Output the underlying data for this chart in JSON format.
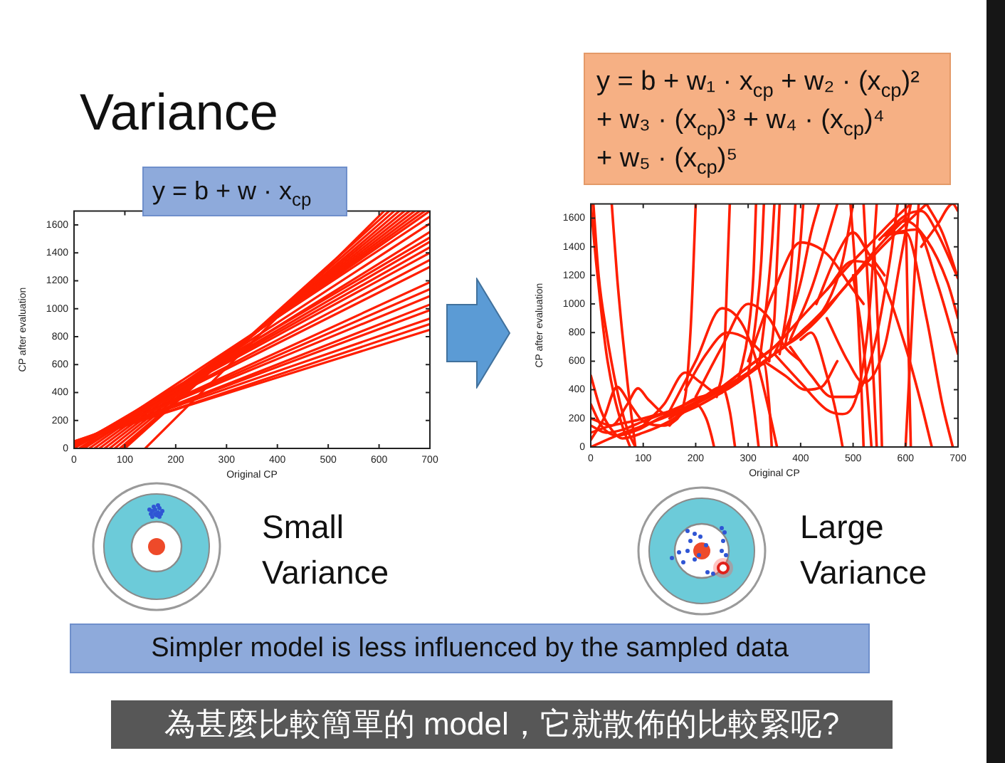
{
  "chart_data": [
    {
      "type": "line",
      "title": "y = b + w · x$_{cp}$",
      "xlabel": "Original CP",
      "ylabel": "CP after evaluation",
      "annotations": [
        "Variance",
        "Small Variance",
        "Simpler model is less influenced by the sampled data",
        "為甚麼比較簡單的 model，它就散佈的比較緊呢?"
      ],
      "xlim": [
        0,
        700
      ],
      "ylim": [
        0,
        1700
      ],
      "xticks": [
        0,
        100,
        200,
        300,
        400,
        500,
        600,
        700
      ],
      "yticks": [
        0,
        200,
        400,
        600,
        800,
        1000,
        1200,
        1400,
        1600
      ],
      "series": [
        {
          "color": "#ff1e00",
          "x": [
            0,
            700
          ],
          "values": [
            50,
            850
          ]
        },
        {
          "color": "#ff1e00",
          "x": [
            0,
            700
          ],
          "values": [
            40,
            890
          ]
        },
        {
          "color": "#ff1e00",
          "x": [
            0,
            700
          ],
          "values": [
            50,
            930
          ]
        },
        {
          "color": "#ff1e00",
          "x": [
            0,
            700
          ],
          "values": [
            40,
            990
          ]
        },
        {
          "color": "#ff1e00",
          "x": [
            0,
            700
          ],
          "values": [
            30,
            1030
          ]
        },
        {
          "color": "#ff1e00",
          "x": [
            0,
            700
          ],
          "values": [
            40,
            1090
          ]
        },
        {
          "color": "#ff1e00",
          "x": [
            0,
            700
          ],
          "values": [
            30,
            1140
          ]
        },
        {
          "color": "#ff1e00",
          "x": [
            0,
            700
          ],
          "values": [
            20,
            1190
          ]
        },
        {
          "color": "#ff1e00",
          "x": [
            0,
            700
          ],
          "values": [
            20,
            1300
          ]
        },
        {
          "color": "#ff1e00",
          "x": [
            0,
            700
          ],
          "values": [
            10,
            1350
          ]
        },
        {
          "color": "#ff1e00",
          "x": [
            0,
            700
          ],
          "values": [
            20,
            1400
          ]
        },
        {
          "color": "#ff1e00",
          "x": [
            0,
            700
          ],
          "values": [
            10,
            1440
          ]
        },
        {
          "color": "#ff1e00",
          "x": [
            0,
            700
          ],
          "values": [
            0,
            1480
          ]
        },
        {
          "color": "#ff1e00",
          "x": [
            0,
            700
          ],
          "values": [
            10,
            1510
          ]
        },
        {
          "color": "#ff1e00",
          "x": [
            30,
            700
          ],
          "values": [
            0,
            1700
          ]
        },
        {
          "color": "#ff1e00",
          "x": [
            40,
            690
          ],
          "values": [
            0,
            1700
          ]
        },
        {
          "color": "#ff1e00",
          "x": [
            50,
            680
          ],
          "values": [
            0,
            1700
          ]
        },
        {
          "color": "#ff1e00",
          "x": [
            60,
            670
          ],
          "values": [
            0,
            1700
          ]
        },
        {
          "color": "#ff1e00",
          "x": [
            70,
            660
          ],
          "values": [
            0,
            1700
          ]
        },
        {
          "color": "#ff1e00",
          "x": [
            80,
            650
          ],
          "values": [
            0,
            1700
          ]
        },
        {
          "color": "#ff1e00",
          "x": [
            90,
            640
          ],
          "values": [
            0,
            1700
          ]
        },
        {
          "color": "#ff1e00",
          "x": [
            95,
            630
          ],
          "values": [
            0,
            1700
          ]
        },
        {
          "color": "#ff1e00",
          "x": [
            100,
            620
          ],
          "values": [
            0,
            1700
          ]
        },
        {
          "color": "#ff1e00",
          "x": [
            140,
            610
          ],
          "values": [
            0,
            1700
          ]
        },
        {
          "color": "#ff1e00",
          "x": [
            15,
            700
          ],
          "values": [
            0,
            1550
          ]
        },
        {
          "color": "#ff1e00",
          "x": [
            20,
            700
          ],
          "values": [
            0,
            1610
          ]
        },
        {
          "color": "#ff1e00",
          "x": [
            10,
            700
          ],
          "values": [
            0,
            1660
          ]
        }
      ]
    },
    {
      "type": "line",
      "title": "y = b + w₁ · x$_{cp}$ + w₂ · (x$_{cp}$)²\n+ w₃ · (x$_{cp}$)³ + w₄ · (x$_{cp}$)⁴\n+ w₅ · (x$_{cp}$)⁵",
      "xlabel": "Original CP",
      "ylabel": "CP after evaluation",
      "annotations": [
        "Large Variance"
      ],
      "xlim": [
        0,
        700
      ],
      "ylim": [
        0,
        1700
      ],
      "xticks": [
        0,
        100,
        200,
        300,
        400,
        500,
        600,
        700
      ],
      "yticks": [
        0,
        200,
        400,
        600,
        800,
        1000,
        1200,
        1400,
        1600
      ],
      "series": [
        {
          "color": "#ff1e00",
          "x": [
            0,
            10,
            20,
            30,
            45,
            60,
            75
          ],
          "values": [
            1700,
            1300,
            950,
            650,
            350,
            150,
            0
          ]
        },
        {
          "color": "#ff1e00",
          "x": [
            5,
            15,
            30,
            50,
            70,
            85
          ],
          "values": [
            1700,
            1200,
            800,
            400,
            120,
            0
          ]
        },
        {
          "color": "#ff1e00",
          "x": [
            40,
            50,
            60,
            70,
            85
          ],
          "values": [
            1700,
            1200,
            800,
            450,
            0
          ]
        },
        {
          "color": "#ff1e00",
          "x": [
            0,
            20,
            40,
            60,
            100,
            150,
            200,
            250,
            300,
            350
          ],
          "values": [
            500,
            250,
            120,
            60,
            100,
            180,
            300,
            420,
            560,
            700
          ]
        },
        {
          "color": "#ff1e00",
          "x": [
            0,
            50,
            100,
            150,
            200,
            250,
            300,
            350,
            400,
            450,
            500,
            550,
            600,
            640
          ],
          "values": [
            0,
            80,
            150,
            220,
            300,
            400,
            520,
            650,
            800,
            980,
            1180,
            1380,
            1560,
            1700
          ]
        },
        {
          "color": "#ff1e00",
          "x": [
            0,
            30,
            60,
            100,
            150,
            200,
            250,
            300,
            350,
            400,
            450,
            500,
            540,
            580,
            610
          ],
          "values": [
            150,
            100,
            120,
            180,
            250,
            330,
            420,
            560,
            700,
            900,
            1100,
            1300,
            1450,
            1600,
            1700
          ]
        },
        {
          "color": "#ff1e00",
          "x": [
            0,
            25,
            50,
            75,
            100,
            140,
            180,
            220,
            260,
            300
          ],
          "values": [
            50,
            200,
            420,
            300,
            180,
            150,
            250,
            350,
            430,
            520
          ]
        },
        {
          "color": "#ff1e00",
          "x": [
            0,
            40,
            70,
            90,
            110,
            150,
            200,
            250
          ],
          "values": [
            200,
            150,
            300,
            410,
            330,
            220,
            280,
            380
          ]
        },
        {
          "color": "#ff1e00",
          "x": [
            100,
            140,
            180,
            210,
            240,
            280,
            320
          ],
          "values": [
            150,
            300,
            520,
            450,
            380,
            450,
            580
          ]
        },
        {
          "color": "#ff1e00",
          "x": [
            150,
            200,
            250,
            290,
            320,
            340,
            355
          ],
          "values": [
            250,
            600,
            970,
            850,
            550,
            250,
            0
          ]
        },
        {
          "color": "#ff1e00",
          "x": [
            200,
            250,
            300,
            340,
            370,
            400
          ],
          "values": [
            350,
            700,
            1000,
            900,
            700,
            600
          ]
        },
        {
          "color": "#ff1e00",
          "x": [
            150,
            180,
            190,
            195,
            200
          ],
          "values": [
            150,
            350,
            800,
            1200,
            1700
          ]
        },
        {
          "color": "#ff1e00",
          "x": [
            240,
            255,
            260,
            265
          ],
          "values": [
            350,
            700,
            1200,
            1700
          ]
        },
        {
          "color": "#ff1e00",
          "x": [
            300,
            315,
            325,
            330
          ],
          "values": [
            500,
            900,
            1300,
            1700
          ]
        },
        {
          "color": "#ff1e00",
          "x": [
            320,
            335,
            345,
            350
          ],
          "values": [
            550,
            1000,
            1400,
            1700
          ]
        },
        {
          "color": "#ff1e00",
          "x": [
            340,
            350,
            355,
            360
          ],
          "values": [
            600,
            900,
            1300,
            1700
          ]
        },
        {
          "color": "#ff1e00",
          "x": [
            150,
            200,
            220,
            230,
            235
          ],
          "values": [
            200,
            300,
            200,
            80,
            0
          ]
        },
        {
          "color": "#ff1e00",
          "x": [
            200,
            250,
            265,
            275
          ],
          "values": [
            300,
            420,
            250,
            0
          ]
        },
        {
          "color": "#ff1e00",
          "x": [
            250,
            300,
            310,
            320
          ],
          "values": [
            380,
            500,
            300,
            0
          ]
        },
        {
          "color": "#ff1e00",
          "x": [
            280,
            330,
            340,
            345
          ],
          "values": [
            450,
            580,
            300,
            0
          ]
        },
        {
          "color": "#ff1e00",
          "x": [
            300,
            350,
            400,
            450,
            500,
            520
          ],
          "values": [
            600,
            1100,
            1430,
            1350,
            1100,
            1000
          ]
        },
        {
          "color": "#ff1e00",
          "x": [
            350,
            400,
            450,
            480,
            510,
            530,
            545
          ],
          "values": [
            650,
            450,
            260,
            230,
            400,
            900,
            1700
          ]
        },
        {
          "color": "#ff1e00",
          "x": [
            380,
            420,
            460,
            500,
            540,
            570,
            585
          ],
          "values": [
            700,
            500,
            350,
            350,
            700,
            1300,
            1700
          ]
        },
        {
          "color": "#ff1e00",
          "x": [
            450,
            500,
            550,
            600,
            630,
            650
          ],
          "values": [
            1100,
            1300,
            1200,
            700,
            300,
            0
          ]
        },
        {
          "color": "#ff1e00",
          "x": [
            550,
            600,
            630,
            660,
            700
          ],
          "values": [
            1450,
            1620,
            1650,
            1500,
            1180
          ]
        },
        {
          "color": "#ff1e00",
          "x": [
            560,
            600,
            640,
            680,
            700
          ],
          "values": [
            1480,
            1580,
            1450,
            1150,
            900
          ]
        },
        {
          "color": "#ff1e00",
          "x": [
            580,
            620,
            660,
            700
          ],
          "values": [
            1500,
            1520,
            1150,
            650
          ]
        },
        {
          "color": "#ff1e00",
          "x": [
            630,
            660,
            690,
            700
          ],
          "values": [
            1400,
            1550,
            1700,
            1650
          ]
        },
        {
          "color": "#ff1e00",
          "x": [
            600,
            605,
            610
          ],
          "values": [
            1700,
            800,
            0
          ]
        },
        {
          "color": "#ff1e00",
          "x": [
            500,
            520,
            535
          ],
          "values": [
            1200,
            700,
            0
          ]
        },
        {
          "color": "#ff1e00",
          "x": [
            540,
            550,
            555
          ],
          "values": [
            1400,
            600,
            0
          ]
        },
        {
          "color": "#ff1e00",
          "x": [
            400,
            420,
            450,
            470,
            480
          ],
          "values": [
            750,
            800,
            500,
            200,
            0
          ]
        },
        {
          "color": "#ff1e00",
          "x": [
            560,
            600,
            640,
            670,
            690
          ],
          "values": [
            1480,
            1500,
            900,
            300,
            0
          ]
        },
        {
          "color": "#ff1e00",
          "x": [
            350,
            380,
            400,
            420,
            435
          ],
          "values": [
            650,
            900,
            1150,
            1500,
            1700
          ]
        },
        {
          "color": "#ff1e00",
          "x": [
            380,
            420,
            450,
            470
          ],
          "values": [
            750,
            1100,
            1450,
            1700
          ]
        },
        {
          "color": "#ff1e00",
          "x": [
            400,
            450,
            480,
            500
          ],
          "values": [
            800,
            1000,
            1300,
            1700
          ]
        },
        {
          "color": "#ff1e00",
          "x": [
            450,
            490,
            520,
            560,
            590,
            610
          ],
          "values": [
            900,
            600,
            450,
            700,
            1300,
            1700
          ]
        },
        {
          "color": "#ff1e00",
          "x": [
            640,
            670,
            700
          ],
          "values": [
            1700,
            1500,
            1180
          ]
        },
        {
          "color": "#ff1e00",
          "x": [
            0,
            20,
            50,
            90,
            130,
            170,
            210,
            250,
            290,
            330,
            370
          ],
          "values": [
            300,
            150,
            80,
            120,
            200,
            260,
            330,
            400,
            480,
            600,
            700
          ]
        },
        {
          "color": "#ff1e00",
          "x": [
            0,
            40,
            80,
            120,
            160,
            200,
            240,
            280,
            320,
            360,
            400,
            440,
            480,
            520,
            560,
            600
          ],
          "values": [
            100,
            150,
            180,
            220,
            260,
            340,
            380,
            460,
            560,
            680,
            780,
            920,
            1100,
            1280,
            1450,
            1600
          ]
        },
        {
          "color": "#ff1e00",
          "x": [
            280,
            300,
            310,
            315
          ],
          "values": [
            450,
            800,
            1200,
            1700
          ]
        },
        {
          "color": "#ff1e00",
          "x": [
            360,
            375,
            385,
            390
          ],
          "values": [
            650,
            1000,
            1400,
            1700
          ]
        },
        {
          "color": "#ff1e00",
          "x": [
            370,
            390,
            400,
            405
          ],
          "values": [
            700,
            1100,
            1450,
            1700
          ]
        },
        {
          "color": "#ff1e00",
          "x": [
            495,
            505,
            515,
            520
          ],
          "values": [
            1700,
            1200,
            500,
            0
          ]
        },
        {
          "color": "#ff1e00",
          "x": [
            520,
            530,
            540,
            545
          ],
          "values": [
            1700,
            1000,
            400,
            0
          ]
        },
        {
          "color": "#ff1e00",
          "x": [
            430,
            470,
            500,
            530,
            560
          ],
          "values": [
            1000,
            1350,
            1500,
            1350,
            1200
          ]
        },
        {
          "color": "#ff1e00",
          "x": [
            330,
            370,
            410,
            440,
            470
          ],
          "values": [
            600,
            500,
            400,
            420,
            600
          ]
        },
        {
          "color": "#ff1e00",
          "x": [
            600,
            610,
            620,
            625
          ],
          "values": [
            0,
            700,
            1400,
            1700
          ]
        },
        {
          "color": "#ff1e00",
          "x": [
            180,
            220,
            260,
            300,
            340
          ],
          "values": [
            400,
            650,
            800,
            750,
            600
          ]
        }
      ]
    }
  ]
}
